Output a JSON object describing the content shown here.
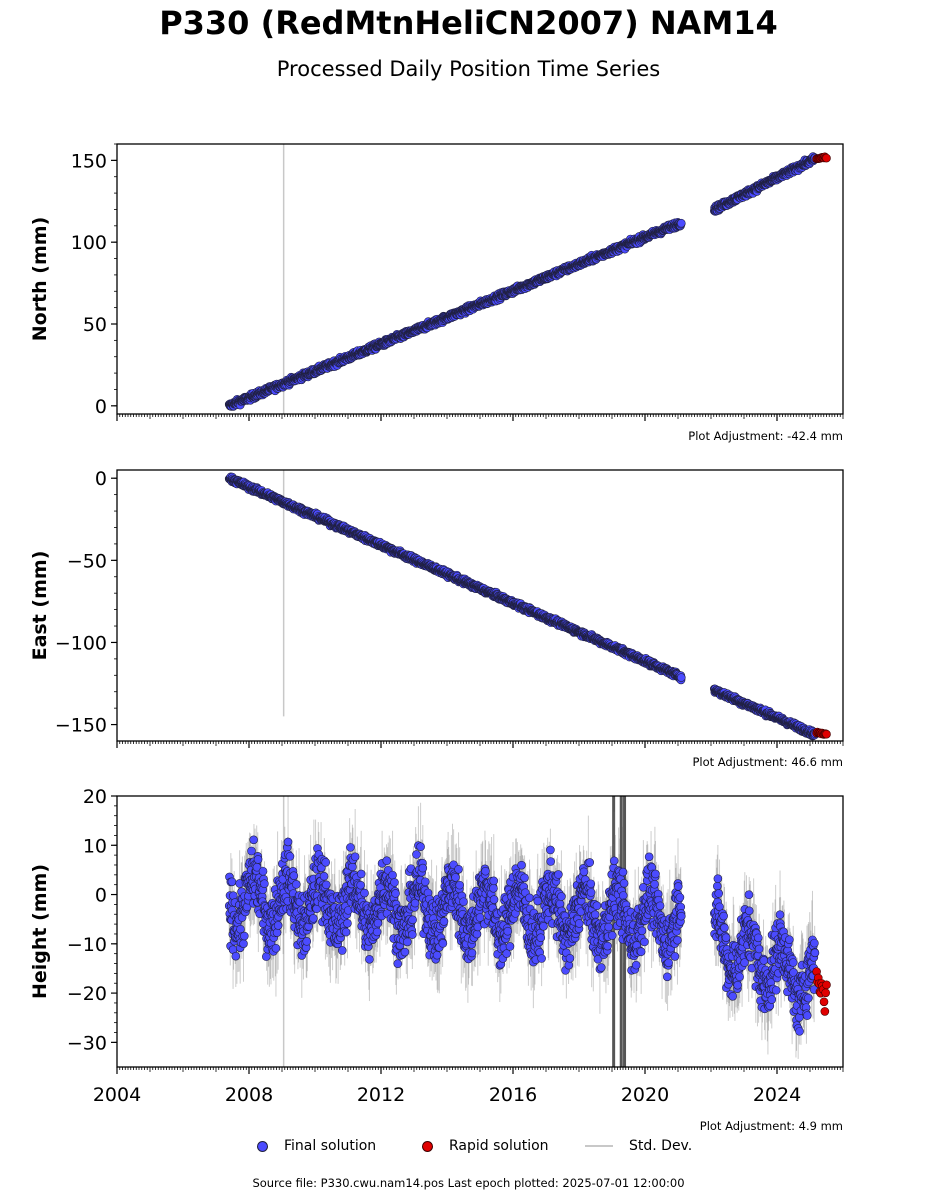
{
  "title": "P330 (RedMtnHeliCN2007) NAM14",
  "subtitle": "Processed Daily Position Time Series",
  "colors": {
    "final": "#4b4bff",
    "rapid": "#e00000",
    "stddev": "#c8c8c8",
    "edge": "#202040"
  },
  "legend": {
    "final": "Final solution",
    "rapid": "Rapid solution",
    "stddev": "Std. Dev."
  },
  "footer": "Source file: P330.cwu.nam14.pos  Last epoch plotted: 2025-07-01 12:00:00",
  "chart_data": [
    {
      "type": "scatter",
      "ylabel": "North (mm)",
      "adjustment": "Plot Adjustment: -42.4 mm",
      "xlim": [
        2004.0,
        2026.0
      ],
      "ylim": [
        -5,
        160
      ],
      "yticks": [
        0,
        50,
        100,
        150
      ],
      "ytick_labels": [
        "0",
        "50",
        "100",
        "150"
      ],
      "xticks": [],
      "xtick_labels": [],
      "series": [
        {
          "name": "Final solution",
          "segments": [
            {
              "x_start": 2007.4,
              "x_end": 2021.1,
              "y_start": 0,
              "y_end": 112,
              "noise": 2.5
            },
            {
              "x_start": 2022.1,
              "x_end": 2025.15,
              "y_start": 120,
              "y_end": 151,
              "noise": 2.5
            }
          ]
        },
        {
          "name": "Rapid solution",
          "segments": [
            {
              "x_start": 2025.2,
              "x_end": 2025.5,
              "y_start": 151,
              "y_end": 152,
              "noise": 0.7
            }
          ]
        }
      ],
      "stddev_spikes": [
        {
          "x": 2009.05,
          "low": -5,
          "high": 160
        }
      ]
    },
    {
      "type": "scatter",
      "ylabel": "East (mm)",
      "adjustment": "Plot Adjustment: 46.6 mm",
      "xlim": [
        2004.0,
        2026.0
      ],
      "ylim": [
        -160,
        5
      ],
      "yticks": [
        0,
        -50,
        -100,
        -150
      ],
      "ytick_labels": [
        "0",
        "−50",
        "−100",
        "−150"
      ],
      "xticks": [],
      "xtick_labels": [],
      "series": [
        {
          "name": "Final solution",
          "segments": [
            {
              "x_start": 2007.4,
              "x_end": 2021.1,
              "y_start": 0,
              "y_end": -121,
              "noise": 2.2
            },
            {
              "x_start": 2022.1,
              "x_end": 2025.15,
              "y_start": -129,
              "y_end": -156,
              "noise": 2.2
            }
          ]
        },
        {
          "name": "Rapid solution",
          "segments": [
            {
              "x_start": 2025.2,
              "x_end": 2025.5,
              "y_start": -155,
              "y_end": -156,
              "noise": 0.7
            }
          ]
        }
      ],
      "stddev_spikes": [
        {
          "x": 2009.05,
          "low": -145,
          "high": 5
        }
      ]
    },
    {
      "type": "scatter",
      "ylabel": "Height (mm)",
      "adjustment": "Plot Adjustment: 4.9 mm",
      "xlim": [
        2004.0,
        2026.0
      ],
      "ylim": [
        -35,
        20
      ],
      "yticks": [
        20,
        10,
        0,
        -10,
        -20,
        -30
      ],
      "ytick_labels": [
        "20",
        "10",
        "0",
        "−10",
        "−20",
        "−30"
      ],
      "xticks": [
        2004,
        2008,
        2012,
        2016,
        2020,
        2024
      ],
      "xtick_labels": [
        "2004",
        "2008",
        "2012",
        "2016",
        "2020",
        "2024"
      ],
      "series": [
        {
          "name": "Final solution",
          "segments": [
            {
              "x_start": 2007.4,
              "x_end": 2021.1,
              "y_start": -1,
              "y_end": -5,
              "noise": 9,
              "seasonal_amp": 5
            },
            {
              "x_start": 2022.1,
              "x_end": 2025.15,
              "y_start": -9,
              "y_end": -18,
              "noise": 9,
              "seasonal_amp": 5
            }
          ]
        },
        {
          "name": "Rapid solution",
          "segments": [
            {
              "x_start": 2025.2,
              "x_end": 2025.5,
              "y_start": -17,
              "y_end": -22,
              "noise": 5
            }
          ]
        }
      ],
      "stddev_spikes": [
        {
          "x": 2009.05,
          "low": -35,
          "high": 20
        },
        {
          "x": 2019.05,
          "low": -35,
          "high": 20,
          "dark": true
        },
        {
          "x": 2019.28,
          "low": -35,
          "high": 20,
          "dark": true
        },
        {
          "x": 2019.38,
          "low": -35,
          "high": 20,
          "dark": true
        }
      ]
    }
  ]
}
